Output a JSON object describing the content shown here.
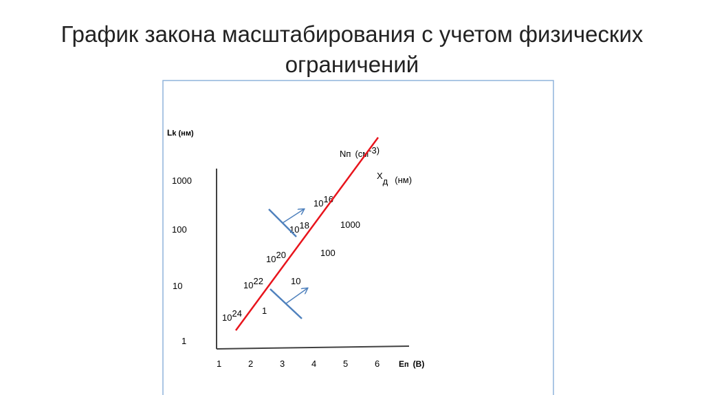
{
  "slide": {
    "title_line1": "График закона масштабирования с учетом физических",
    "title_line2": "ограничений"
  },
  "colors": {
    "frame": "#8fb4dc",
    "axis": "#404040",
    "main_line": "#e8141c",
    "marker": "#4f81bd"
  },
  "chart_data": {
    "type": "line",
    "x_axis": {
      "label": "Eп (В)",
      "label_main": "E",
      "label_sub": "п",
      "label_unit": "(В)",
      "ticks": [
        "1",
        "2",
        "3",
        "4",
        "5",
        "6"
      ]
    },
    "y_axis": {
      "label_main": "L",
      "label_sub": "k (нм)",
      "scale": "log",
      "ticks": [
        "1",
        "10",
        "100",
        "1000"
      ]
    },
    "series": [
      {
        "x": [
          1.5,
          6.0
        ],
        "y": [
          1.6,
          6300
        ],
        "color": "#e8141c"
      }
    ],
    "secondary_scales": {
      "doping": {
        "label_main": "N",
        "label_sub": "п",
        "label_unit": "(см",
        "label_unit_exp": "-3)",
        "labels": [
          {
            "base": "10",
            "exp": "24"
          },
          {
            "base": "10",
            "exp": "22"
          },
          {
            "base": "10",
            "exp": "20"
          },
          {
            "base": "10",
            "exp": "18"
          },
          {
            "base": "10",
            "exp": "16"
          }
        ]
      },
      "depletion_width": {
        "label_main": "X",
        "label_sub": "д",
        "label_unit": "(нм)",
        "labels": [
          "1",
          "10",
          "100",
          "1000"
        ]
      }
    },
    "grid": false,
    "legend": "none"
  }
}
